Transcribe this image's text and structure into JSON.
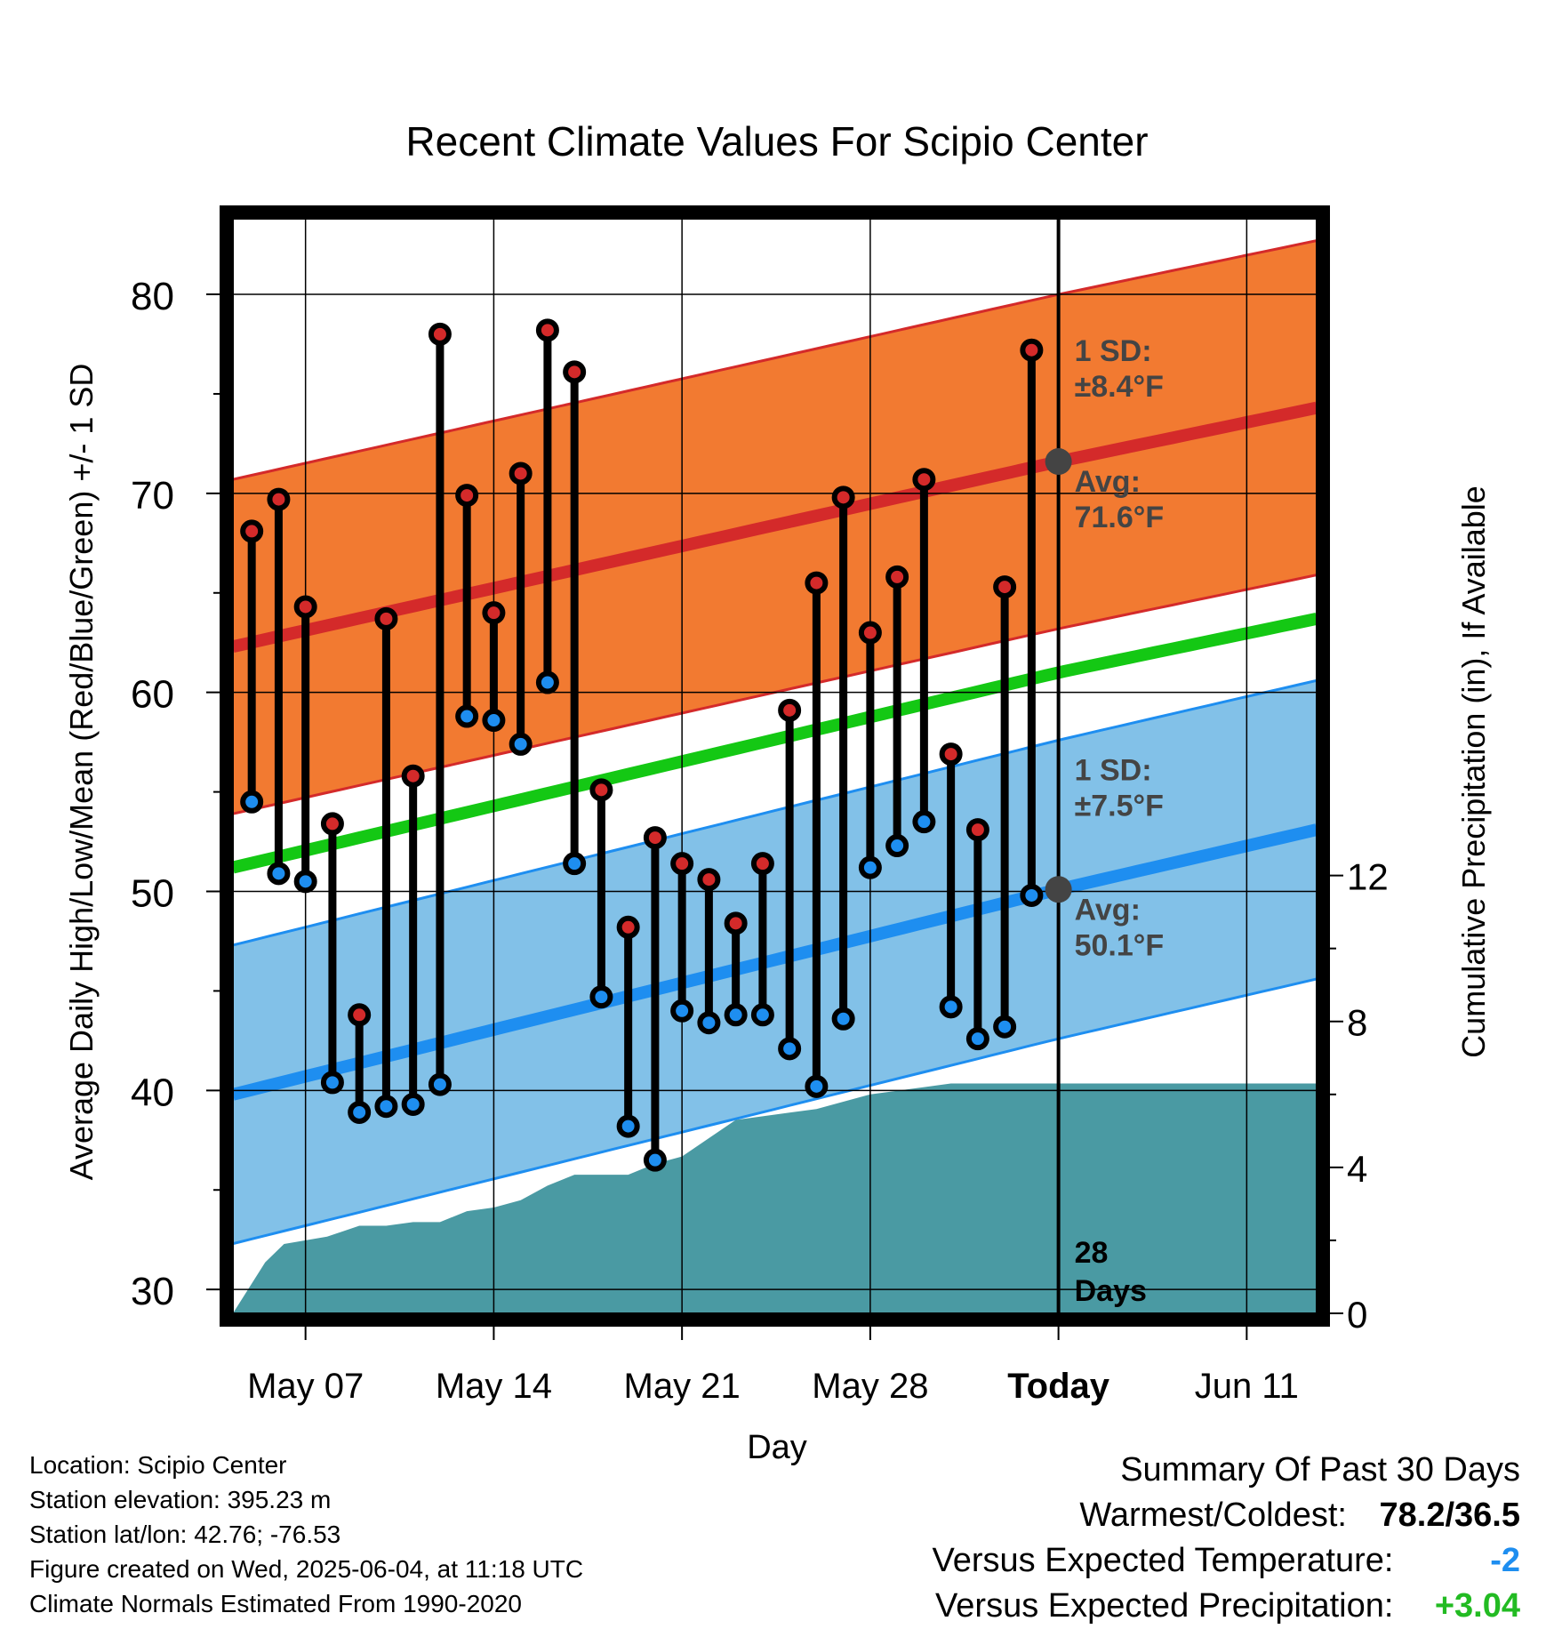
{
  "chart_data": {
    "type": "line",
    "title": "Recent Climate Values For Scipio Center",
    "xlabel": "Day",
    "ylabel": "Average Daily High/Low/Mean (Red/Blue/Green) +/- 1 SD",
    "y2label": "Cumulative Precipitation (in), If Available",
    "ylim": [
      28.8,
      83.8
    ],
    "y2lim": [
      0,
      30
    ],
    "yticks": [
      30,
      40,
      50,
      60,
      70,
      80
    ],
    "y2ticks": [
      0,
      4,
      8,
      12
    ],
    "x_ticks": [
      {
        "label": "May 07",
        "day": 7
      },
      {
        "label": "May 14",
        "day": 14
      },
      {
        "label": "May 21",
        "day": 21
      },
      {
        "label": "May 28",
        "day": 28
      },
      {
        "label": "Today",
        "day": 35
      },
      {
        "label": "Jun 11",
        "day": 42
      }
    ],
    "xlim_days": [
      4.3,
      44.6
    ],
    "today_day": 35,
    "normals": {
      "high_avg": {
        "day": [
          4.3,
          35,
          44.6
        ],
        "values": [
          62.3,
          71.6,
          74.3
        ]
      },
      "high_sd": 8.4,
      "low_avg": {
        "day": [
          4.3,
          35,
          44.6
        ],
        "values": [
          39.8,
          50.1,
          53.1
        ]
      },
      "low_sd": 7.5,
      "mean_avg": {
        "day": [
          4.3,
          35,
          44.6
        ],
        "values": [
          51.2,
          61.0,
          63.7
        ]
      }
    },
    "observations": {
      "day": [
        5,
        6,
        7,
        8,
        9,
        10,
        11,
        12,
        13,
        14,
        15,
        16,
        17,
        18,
        19,
        20,
        21,
        22,
        23,
        24,
        25,
        26,
        27,
        28,
        29,
        30,
        31,
        32,
        33,
        34
      ],
      "high": [
        68.1,
        69.7,
        64.3,
        53.4,
        43.8,
        63.7,
        55.8,
        78.0,
        69.9,
        64.0,
        71.0,
        78.2,
        76.1,
        55.1,
        48.2,
        52.7,
        51.4,
        50.6,
        48.4,
        51.4,
        59.1,
        65.5,
        69.8,
        63.0,
        65.8,
        70.7,
        56.9,
        53.1,
        65.3,
        77.2
      ],
      "low": [
        54.5,
        50.9,
        50.5,
        40.4,
        38.9,
        39.2,
        39.3,
        40.3,
        58.8,
        58.6,
        57.4,
        60.5,
        51.4,
        44.7,
        38.2,
        36.5,
        44.0,
        43.4,
        43.8,
        43.8,
        42.1,
        40.2,
        43.6,
        51.2,
        52.3,
        53.5,
        44.2,
        42.6,
        43.2,
        49.8
      ]
    },
    "precip_cumulative": {
      "day": [
        4.3,
        5.5,
        6.2,
        7.0,
        7.8,
        9.0,
        10.0,
        11.0,
        12.0,
        13.0,
        14.0,
        15.0,
        16.0,
        17.0,
        18.0,
        19.0,
        20.0,
        21.0,
        22.0,
        23.0,
        24.0,
        25.0,
        26.0,
        27.0,
        28.0,
        29.0,
        30.0,
        31.0,
        32.0,
        33.0,
        34.0,
        35.0,
        44.6
      ],
      "values": [
        0.0,
        1.4,
        1.9,
        2.0,
        2.1,
        2.4,
        2.4,
        2.5,
        2.5,
        2.8,
        2.9,
        3.1,
        3.5,
        3.8,
        3.8,
        3.8,
        4.1,
        4.3,
        4.8,
        5.3,
        5.4,
        5.5,
        5.6,
        5.8,
        6.0,
        6.1,
        6.2,
        6.3,
        6.3,
        6.3,
        6.3,
        6.3,
        6.3
      ]
    },
    "annotations": {
      "high_sd_label": "1 SD:",
      "high_sd_value": "±8.4°F",
      "high_avg_label": "Avg:",
      "high_avg_value": "71.6°F",
      "low_sd_label": "1 SD:",
      "low_sd_value": "±7.5°F",
      "low_avg_label": "Avg:",
      "low_avg_value": "50.1°F",
      "days_count": "28",
      "days_label": "Days"
    },
    "colors": {
      "high_band": "#f27a31",
      "high_line": "#d42a2a",
      "low_band": "#82c1e8",
      "low_line": "#1e8ef0",
      "mean_line": "#14c814",
      "precip": "#4a9aa3",
      "high_dot": "#d42a2a",
      "low_dot": "#1e8ef0",
      "annotation_text": "#444444",
      "avg_marker": "#444444",
      "positive": "#22bb22"
    }
  },
  "footer": {
    "location": "Location: Scipio Center",
    "elevation": "Station elevation: 395.23 m",
    "latlon": "Station lat/lon: 42.76; -76.53",
    "created": "Figure created on Wed, 2025-06-04, at 11:18 UTC",
    "normals": "Climate Normals Estimated From 1990-2020"
  },
  "summary": {
    "heading": "Summary Of Past 30 Days",
    "warmest_label": "Warmest/Coldest:",
    "warmest_value": "78.2/36.5",
    "temp_label": "Versus Expected Temperature:",
    "temp_value": "-2",
    "precip_label": "Versus Expected Precipitation:",
    "precip_value": "+3.04"
  }
}
